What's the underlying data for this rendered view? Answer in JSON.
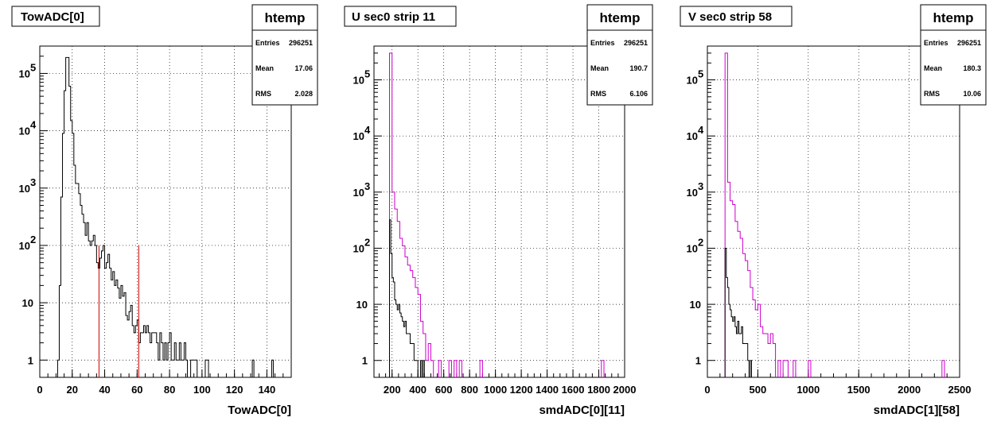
{
  "chart_data": [
    {
      "type": "histogram",
      "title": "TowADC[0]",
      "xlabel": "TowADC[0]",
      "ylabel": "",
      "xlim": [
        0,
        155
      ],
      "ylim": [
        0.5,
        300000
      ],
      "yscale": "log",
      "grid": true,
      "xticks": [
        0,
        20,
        40,
        60,
        80,
        100,
        120,
        140
      ],
      "xtick_labels": [
        "0",
        "20",
        "40",
        "60",
        "80",
        "100",
        "120",
        "140"
      ],
      "stats": {
        "name": "htemp",
        "entries_label": "Entries",
        "entries": "296251",
        "mean_label": "Mean",
        "mean": "17.06",
        "rms_label": "RMS",
        "rms": "2.028"
      },
      "cut_lines": [
        {
          "x": 36.5,
          "ymax": 100,
          "color": "#cc0000"
        },
        {
          "x": 61,
          "ymax": 100,
          "color": "#cc0000"
        }
      ],
      "series": [
        {
          "color": "#000000",
          "binwidth": 1,
          "points": [
            [
              11,
              1
            ],
            [
              12,
              20
            ],
            [
              13,
              700
            ],
            [
              14,
              9000
            ],
            [
              15,
              50000
            ],
            [
              16,
              190000
            ],
            [
              17,
              190000
            ],
            [
              18,
              60000
            ],
            [
              19,
              15000
            ],
            [
              20,
              9000
            ],
            [
              21,
              2500
            ],
            [
              22,
              1200
            ],
            [
              23,
              1200
            ],
            [
              24,
              800
            ],
            [
              25,
              500
            ],
            [
              26,
              350
            ],
            [
              27,
              250
            ],
            [
              28,
              150
            ],
            [
              29,
              250
            ],
            [
              30,
              120
            ],
            [
              31,
              100
            ],
            [
              32,
              120
            ],
            [
              33,
              150
            ],
            [
              34,
              100
            ],
            [
              35,
              50
            ],
            [
              36,
              40
            ],
            [
              37,
              60
            ],
            [
              38,
              80
            ],
            [
              39,
              100
            ],
            [
              40,
              40
            ],
            [
              41,
              50
            ],
            [
              42,
              70
            ],
            [
              43,
              40
            ],
            [
              44,
              25
            ],
            [
              45,
              35
            ],
            [
              46,
              20
            ],
            [
              47,
              25
            ],
            [
              48,
              18
            ],
            [
              49,
              12
            ],
            [
              50,
              20
            ],
            [
              51,
              13
            ],
            [
              52,
              15
            ],
            [
              53,
              6
            ],
            [
              54,
              5
            ],
            [
              55,
              7
            ],
            [
              56,
              9
            ],
            [
              57,
              4
            ],
            [
              58,
              3
            ],
            [
              59,
              4
            ],
            [
              60,
              5
            ],
            [
              61,
              2
            ],
            [
              62,
              3
            ],
            [
              63,
              3
            ],
            [
              64,
              4
            ],
            [
              65,
              3
            ],
            [
              66,
              4
            ],
            [
              67,
              3
            ],
            [
              68,
              2
            ],
            [
              69,
              3
            ],
            [
              70,
              3
            ],
            [
              71,
              3
            ],
            [
              72,
              2
            ],
            [
              73,
              1
            ],
            [
              74,
              3
            ],
            [
              75,
              2
            ],
            [
              76,
              1
            ],
            [
              77,
              2
            ],
            [
              78,
              1
            ],
            [
              79,
              2
            ],
            [
              80,
              3
            ],
            [
              81,
              1
            ],
            [
              82,
              1
            ],
            [
              83,
              2
            ],
            [
              84,
              1
            ],
            [
              85,
              1
            ],
            [
              86,
              2
            ],
            [
              87,
              1
            ],
            [
              88,
              1
            ],
            [
              89,
              2
            ],
            [
              90,
              1
            ],
            [
              93,
              1
            ],
            [
              94,
              1
            ],
            [
              95,
              1
            ],
            [
              96,
              1
            ],
            [
              102,
              1
            ],
            [
              103,
              1
            ],
            [
              131,
              1
            ],
            [
              143,
              1
            ]
          ]
        }
      ]
    },
    {
      "type": "histogram",
      "title": "U sec0 strip 11",
      "xlabel": "smdADC[0][11]",
      "ylabel": "",
      "xlim": [
        60,
        2000
      ],
      "ylim": [
        0.5,
        400000
      ],
      "yscale": "log",
      "grid": true,
      "xticks": [
        200,
        400,
        600,
        800,
        1000,
        1200,
        1400,
        1600,
        1800,
        2000
      ],
      "xtick_labels": [
        "200",
        "400",
        "600",
        "800",
        "1000",
        "1200",
        "1400",
        "1600",
        "1800",
        "2000"
      ],
      "stats": {
        "name": "htemp",
        "entries_label": "Entries",
        "entries": "296251",
        "mean_label": "Mean",
        "mean": "190.7",
        "rms_label": "RMS",
        "rms": "6.106"
      },
      "series": [
        {
          "color": "#cc00cc",
          "binwidth": 20,
          "points": [
            [
              180,
              300000
            ],
            [
              200,
              1000
            ],
            [
              220,
              500
            ],
            [
              240,
              300
            ],
            [
              260,
              150
            ],
            [
              280,
              110
            ],
            [
              300,
              70
            ],
            [
              320,
              50
            ],
            [
              340,
              40
            ],
            [
              360,
              30
            ],
            [
              380,
              20
            ],
            [
              400,
              15
            ],
            [
              420,
              5
            ],
            [
              440,
              3
            ],
            [
              460,
              1
            ],
            [
              480,
              2
            ],
            [
              500,
              1
            ],
            [
              560,
              1
            ],
            [
              640,
              1
            ],
            [
              680,
              1
            ],
            [
              720,
              1
            ],
            [
              880,
              1
            ],
            [
              1820,
              1
            ]
          ]
        },
        {
          "color": "#000000",
          "binwidth": 10,
          "points": [
            [
              180,
              320
            ],
            [
              190,
              80
            ],
            [
              200,
              30
            ],
            [
              210,
              25
            ],
            [
              220,
              12
            ],
            [
              230,
              10
            ],
            [
              240,
              8
            ],
            [
              250,
              10
            ],
            [
              260,
              7
            ],
            [
              270,
              6
            ],
            [
              280,
              5
            ],
            [
              290,
              4
            ],
            [
              300,
              5
            ],
            [
              310,
              3
            ],
            [
              320,
              3
            ],
            [
              330,
              3
            ],
            [
              340,
              2
            ],
            [
              350,
              2
            ],
            [
              360,
              2
            ],
            [
              370,
              1
            ],
            [
              380,
              1
            ],
            [
              390,
              1
            ],
            [
              420,
              1
            ],
            [
              440,
              1
            ]
          ]
        }
      ]
    },
    {
      "type": "histogram",
      "title": "V sec0 strip 58",
      "xlabel": "smdADC[1][58]",
      "ylabel": "",
      "xlim": [
        0,
        2500
      ],
      "ylim": [
        0.5,
        400000
      ],
      "yscale": "log",
      "grid": true,
      "xticks": [
        0,
        500,
        1000,
        1500,
        2000,
        2500
      ],
      "xtick_labels": [
        "0",
        "500",
        "1000",
        "1500",
        "2000",
        "2500"
      ],
      "stats": {
        "name": "htemp",
        "entries_label": "Entries",
        "entries": "296251",
        "mean_label": "Mean",
        "mean": "180.3",
        "rms_label": "RMS",
        "rms": "10.06"
      },
      "series": [
        {
          "color": "#cc00cc",
          "binwidth": 25,
          "points": [
            [
              175,
              300000
            ],
            [
              200,
              1500
            ],
            [
              225,
              700
            ],
            [
              250,
              600
            ],
            [
              275,
              300
            ],
            [
              300,
              200
            ],
            [
              325,
              150
            ],
            [
              350,
              80
            ],
            [
              375,
              60
            ],
            [
              400,
              40
            ],
            [
              425,
              20
            ],
            [
              450,
              12
            ],
            [
              475,
              8
            ],
            [
              500,
              10
            ],
            [
              525,
              4
            ],
            [
              550,
              3
            ],
            [
              575,
              3
            ],
            [
              600,
              2
            ],
            [
              625,
              3
            ],
            [
              650,
              2
            ],
            [
              700,
              1
            ],
            [
              750,
              1
            ],
            [
              775,
              1
            ],
            [
              850,
              1
            ],
            [
              1000,
              1
            ],
            [
              2325,
              1
            ]
          ]
        },
        {
          "color": "#000000",
          "binwidth": 12.5,
          "points": [
            [
              175,
              100
            ],
            [
              187.5,
              30
            ],
            [
              200,
              20
            ],
            [
              212.5,
              10
            ],
            [
              225,
              8
            ],
            [
              237.5,
              6
            ],
            [
              250,
              5
            ],
            [
              262.5,
              6
            ],
            [
              275,
              4
            ],
            [
              287.5,
              3
            ],
            [
              300,
              5
            ],
            [
              312.5,
              3
            ],
            [
              325,
              3
            ],
            [
              337.5,
              4
            ],
            [
              350,
              2
            ],
            [
              362.5,
              2
            ],
            [
              375,
              2
            ],
            [
              387.5,
              2
            ],
            [
              400,
              1
            ],
            [
              425,
              1
            ]
          ]
        }
      ]
    }
  ]
}
